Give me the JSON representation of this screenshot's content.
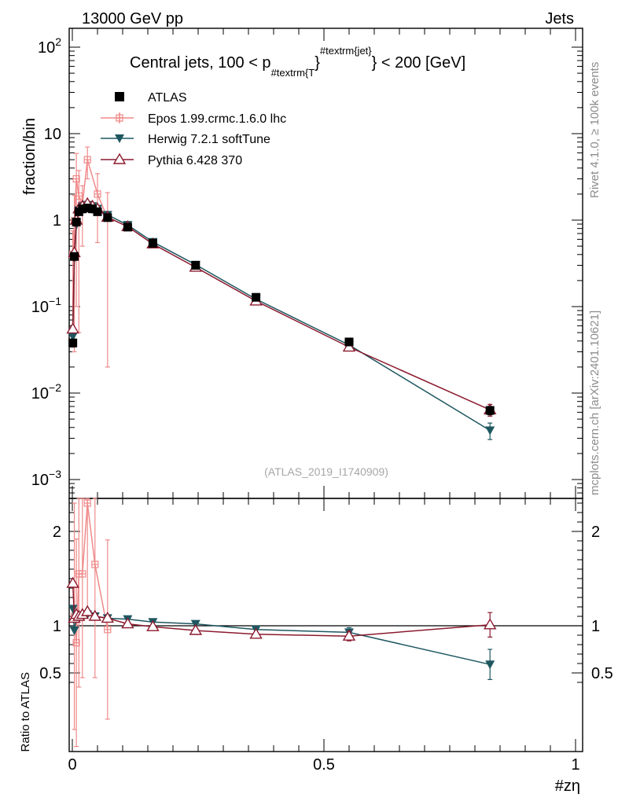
{
  "header": {
    "left": "13000 GeV pp",
    "right": "Jets"
  },
  "side_text": {
    "top": "Rivet 4.1.0, ≥ 100k events",
    "bottom": "mcplots.cern.ch [arXiv:2401.10621]"
  },
  "watermark": "(ATLAS_2019_I1740909)",
  "colors": {
    "atlas": "#000000",
    "epos": "#f08a8a",
    "herwig": "#1e5760",
    "pythia": "#8b1a2e"
  },
  "chart_data": [
    {
      "type": "scatter",
      "title": "Central jets, 100 < p_{#textrm{T}}^{#textrm{jet}} < 200 [GeV]",
      "title_parts": {
        "lead": "Central jets, 100 < p",
        "sub": "#textrm{T",
        "close": "}",
        "sup": "#textrm{jet}",
        "tail": "} < 200 [GeV]"
      },
      "ylabel": "fraction/bin",
      "yscale": "log",
      "ylim": [
        0.0007,
        150
      ],
      "xlim": [
        0,
        1
      ],
      "yticks": [
        {
          "value": 0.001,
          "base": "10",
          "exp": "−3"
        },
        {
          "value": 0.01,
          "base": "10",
          "exp": "−2"
        },
        {
          "value": 0.1,
          "base": "10",
          "exp": "−1"
        },
        {
          "value": 1,
          "base": "1",
          "exp": ""
        },
        {
          "value": 10,
          "base": "10",
          "exp": ""
        },
        {
          "value": 100,
          "base": "10",
          "exp": "2"
        }
      ],
      "legend_position": "top-left",
      "series": [
        {
          "name": "ATLAS",
          "key": "atlas",
          "marker": "square",
          "x": [
            0.001,
            0.004,
            0.008,
            0.013,
            0.02,
            0.03,
            0.04,
            0.05,
            0.07,
            0.11,
            0.16,
            0.245,
            0.365,
            0.55,
            0.83
          ],
          "y": [
            0.038,
            0.38,
            0.95,
            1.25,
            1.35,
            1.38,
            1.35,
            1.25,
            1.07,
            0.83,
            0.54,
            0.3,
            0.128,
            0.039,
            0.0063
          ],
          "yerr": [
            0.004,
            0.03,
            0.05,
            0.05,
            0.05,
            0.05,
            0.05,
            0.05,
            0.04,
            0.03,
            0.02,
            0.01,
            0.005,
            0.0015,
            0.0007
          ]
        },
        {
          "name": "Epos 1.99.crmc.1.6.0 lhc",
          "key": "epos",
          "marker": "cross",
          "x": [
            0.001,
            0.004,
            0.008,
            0.013,
            0.02,
            0.03,
            0.05,
            0.07
          ],
          "y": [
            0.4,
            0.98,
            3.0,
            1.9,
            1.5,
            5.0,
            2.0,
            1.05
          ],
          "yerr": [
            0.35,
            0.95,
            2.9,
            1.85,
            1.0,
            2.0,
            1.45,
            1.03
          ]
        },
        {
          "name": "Herwig 7.2.1 softTune",
          "key": "herwig",
          "marker": "tri-down",
          "x": [
            0.001,
            0.004,
            0.008,
            0.013,
            0.02,
            0.03,
            0.04,
            0.05,
            0.07,
            0.11,
            0.16,
            0.245,
            0.365,
            0.55,
            0.83
          ],
          "y": [
            0.045,
            0.36,
            0.88,
            1.3,
            1.45,
            1.5,
            1.45,
            1.35,
            1.15,
            0.88,
            0.56,
            0.305,
            0.122,
            0.036,
            0.0037
          ],
          "yerr": [
            0,
            0,
            0,
            0,
            0,
            0,
            0,
            0,
            0,
            0,
            0,
            0,
            0,
            0.003,
            0.0008
          ]
        },
        {
          "name": "Pythia 6.428 370",
          "key": "pythia",
          "marker": "tri-up-open",
          "x": [
            0.001,
            0.004,
            0.008,
            0.013,
            0.02,
            0.03,
            0.04,
            0.05,
            0.07,
            0.11,
            0.16,
            0.245,
            0.365,
            0.55,
            0.83
          ],
          "y": [
            0.055,
            0.42,
            1.0,
            1.35,
            1.45,
            1.55,
            1.45,
            1.35,
            1.08,
            0.84,
            0.53,
            0.285,
            0.116,
            0.034,
            0.0064
          ],
          "yerr": [
            0,
            0,
            0,
            0,
            0,
            0,
            0,
            0,
            0,
            0,
            0,
            0,
            0,
            0.002,
            0.001
          ]
        }
      ]
    },
    {
      "type": "scatter",
      "title": "",
      "ylabel": "Ratio to ATLAS",
      "xlabel": "#zη",
      "ylim": [
        0.35,
        2.3
      ],
      "xlim": [
        0,
        1
      ],
      "yticks": [
        0.5,
        1,
        2
      ],
      "xticks": [
        {
          "value": 0,
          "label": "0"
        },
        {
          "value": 0.5,
          "label": "0.5"
        },
        {
          "value": 1,
          "label": "1"
        }
      ],
      "reference_line": 1,
      "series": [
        {
          "name": "Epos 1.99.crmc.1.6.0 lhc",
          "key": "epos",
          "marker": "cross",
          "x": [
            0.004,
            0.008,
            0.013,
            0.02,
            0.03,
            0.045,
            0.07
          ],
          "y": [
            1.1,
            0.82,
            1.55,
            1.55,
            2.3,
            1.65,
            0.96
          ],
          "yerr": [
            1.2,
            1.1,
            1.2,
            1.1,
            1.2,
            1.2,
            0.95
          ]
        },
        {
          "name": "Herwig 7.2.1 softTune",
          "key": "herwig",
          "marker": "tri-down",
          "x": [
            0.001,
            0.004,
            0.008,
            0.013,
            0.02,
            0.03,
            0.045,
            0.07,
            0.11,
            0.16,
            0.245,
            0.365,
            0.55,
            0.83
          ],
          "y": [
            1.18,
            0.95,
            1.08,
            1.1,
            1.1,
            1.12,
            1.1,
            1.08,
            1.07,
            1.04,
            1.02,
            0.96,
            0.93,
            0.59
          ],
          "yerr": [
            0,
            0,
            0,
            0,
            0,
            0,
            0,
            0,
            0,
            0,
            0,
            0,
            0.05,
            0.16
          ]
        },
        {
          "name": "Pythia 6.428 370",
          "key": "pythia",
          "marker": "tri-up-open",
          "x": [
            0.001,
            0.004,
            0.008,
            0.013,
            0.02,
            0.03,
            0.045,
            0.07,
            0.11,
            0.16,
            0.245,
            0.365,
            0.55,
            0.83
          ],
          "y": [
            1.45,
            1.08,
            1.12,
            1.1,
            1.12,
            1.15,
            1.1,
            1.08,
            1.02,
            0.99,
            0.95,
            0.91,
            0.89,
            1.01
          ],
          "yerr": [
            0,
            0,
            0,
            0,
            0,
            0,
            0,
            0,
            0,
            0,
            0,
            0,
            0.05,
            0.13
          ]
        }
      ]
    }
  ]
}
